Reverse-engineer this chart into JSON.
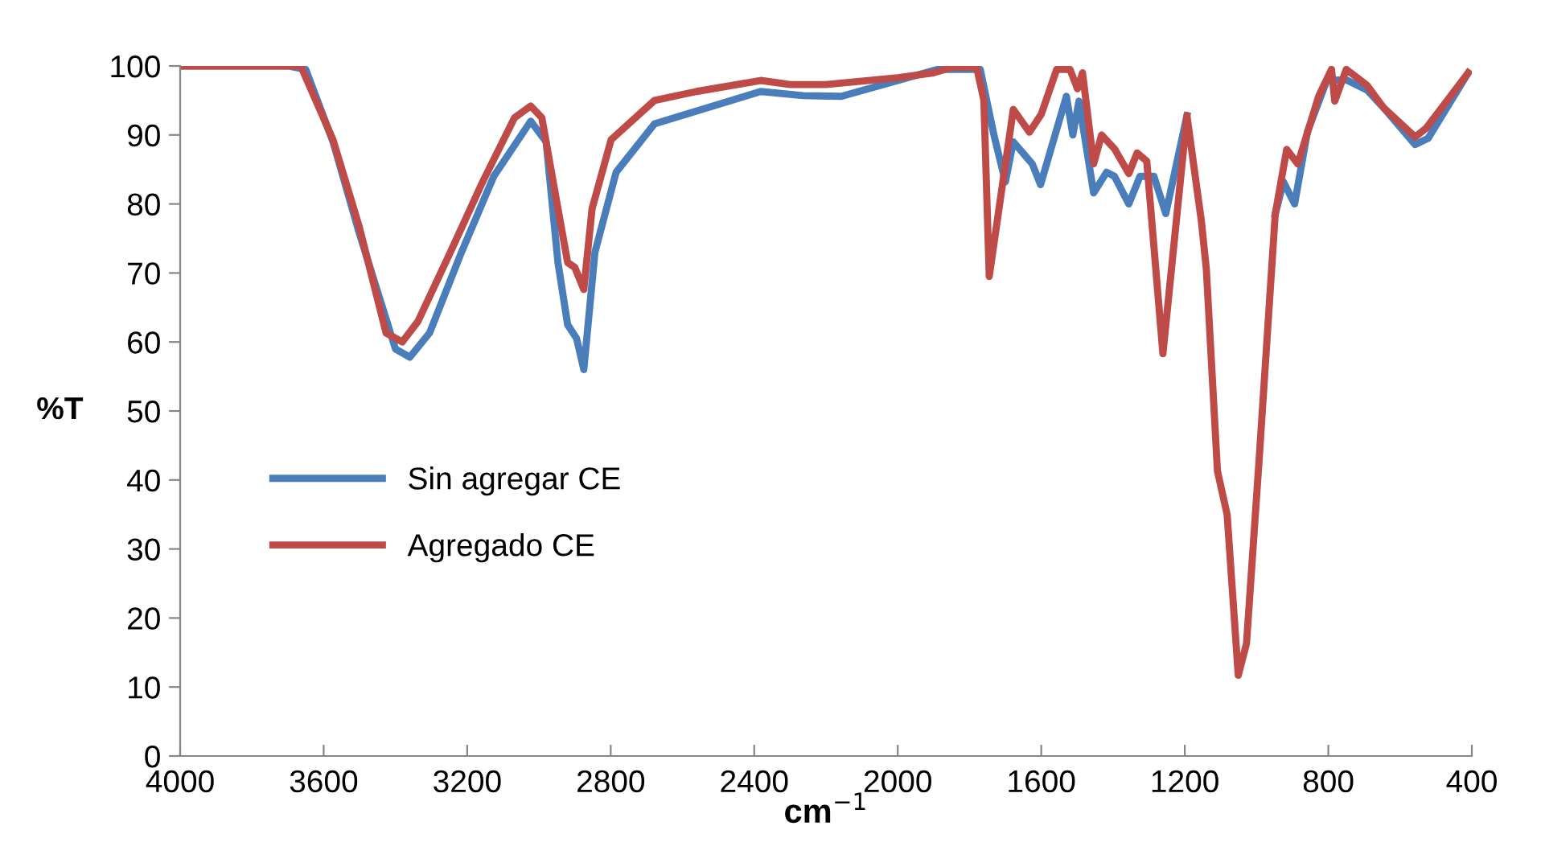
{
  "chart_data": {
    "type": "line",
    "xlabel": "cm$^{−1}$",
    "ylabel": "%T",
    "xlim": [
      4000,
      400
    ],
    "xticks": [
      4000,
      3600,
      3200,
      2800,
      2400,
      2000,
      1600,
      1200,
      800,
      400
    ],
    "ylim": [
      0,
      100
    ],
    "yticks": [
      0,
      10,
      20,
      30,
      40,
      50,
      60,
      70,
      80,
      90,
      100
    ],
    "grid": false,
    "legend": "left",
    "marker": "none",
    "line_style": "solid",
    "series": [
      {
        "name": "Sin agregar CE",
        "color": "#4a7ebb",
        "x": [
          4000,
          3700,
          3650,
          3574,
          3502,
          3400,
          3360,
          3305,
          3216,
          3126,
          3023,
          2980,
          2947,
          2920,
          2895,
          2875,
          2844,
          2785,
          2678,
          2382,
          2264,
          2157,
          1889,
          1770,
          1732,
          1700,
          1678,
          1625,
          1602,
          1530,
          1512,
          1495,
          1454,
          1418,
          1396,
          1356,
          1325,
          1286,
          1253,
          1194,
          1154,
          1140,
          1109,
          1082,
          1051,
          1028,
          992,
          948,
          925,
          894,
          858,
          804,
          750,
          692,
          647,
          558,
          522,
          410
        ],
        "values": [
          100,
          100,
          99.5,
          89,
          76,
          59,
          57.8,
          61.3,
          73,
          84,
          92,
          89,
          71.5,
          62.5,
          60.5,
          56,
          73,
          84.6,
          91.6,
          96.3,
          95.7,
          95.6,
          99.5,
          99.5,
          90,
          83.2,
          89,
          85.8,
          82.8,
          95.6,
          90,
          94.9,
          81.6,
          84.6,
          84,
          80,
          84,
          84,
          78.6,
          92.8,
          null,
          null,
          null,
          null,
          null,
          null,
          null,
          78.5,
          83.2,
          80,
          90.5,
          97.9,
          98,
          96.5,
          94,
          88.6,
          89.5,
          99
        ]
      },
      {
        "name": "Agregado CE",
        "color": "#be4b48",
        "x": [
          4000,
          3664,
          3574,
          3502,
          3426,
          3381,
          3337,
          3247,
          3157,
          3068,
          3023,
          2992,
          2947,
          2920,
          2900,
          2875,
          2852,
          2799,
          2678,
          2561,
          2382,
          2300,
          2200,
          2000,
          1900,
          1850,
          1780,
          1760,
          1745,
          1678,
          1633,
          1600,
          1557,
          1520,
          1499,
          1485,
          1454,
          1432,
          1396,
          1356,
          1333,
          1306,
          1261,
          1194,
          1154,
          1140,
          1109,
          1082,
          1051,
          1028,
          992,
          948,
          916,
          885,
          827,
          791,
          782,
          750,
          692,
          647,
          558,
          527,
          410
        ],
        "values": [
          100,
          100,
          89.3,
          76.9,
          61.3,
          60,
          63,
          73,
          83.2,
          92.5,
          94.2,
          92.5,
          79.3,
          71.5,
          70.8,
          67.6,
          79.3,
          89.3,
          95,
          96.3,
          97.9,
          97.3,
          97.3,
          98.3,
          99,
          99.8,
          99.8,
          95,
          69.5,
          93.7,
          90.4,
          93,
          99.5,
          99.5,
          96.7,
          99,
          85.8,
          90,
          88,
          84.4,
          87.4,
          86.2,
          58.3,
          92.8,
          77.6,
          70.6,
          41.3,
          35,
          11.7,
          16.3,
          43.6,
          78.5,
          87.9,
          85.8,
          95.6,
          99.5,
          94.9,
          99.5,
          97.2,
          94,
          89.7,
          91,
          99
        ]
      }
    ]
  }
}
